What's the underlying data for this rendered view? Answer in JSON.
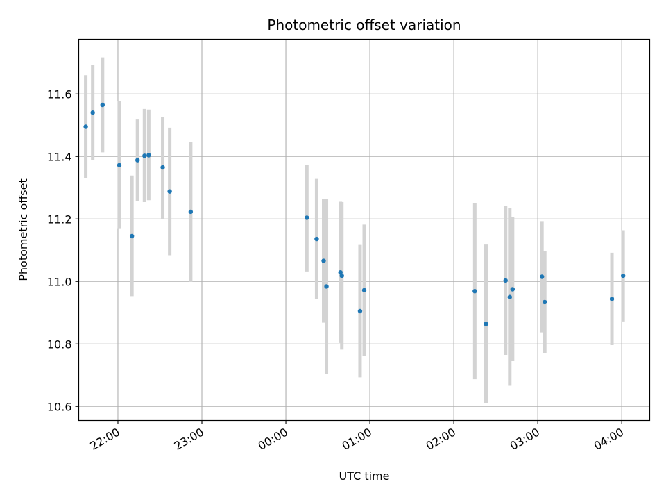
{
  "chart_data": {
    "type": "scatter",
    "title": "Photometric offset variation",
    "xlabel": "UTC time",
    "ylabel": "Photometric offset",
    "x_unit": "UTC time (HH:MM), night spanning midnight",
    "xlim": [
      "21:32",
      "04:20"
    ],
    "ylim": [
      10.555,
      11.775
    ],
    "grid": true,
    "legend": "none",
    "x_ticks": [
      "22:00",
      "23:00",
      "00:00",
      "01:00",
      "02:00",
      "03:00",
      "04:00"
    ],
    "y_ticks": [
      10.6,
      10.8,
      11.0,
      11.2,
      11.4,
      11.6
    ],
    "y_tick_labels": [
      "10.6",
      "10.8",
      "11.0",
      "11.2",
      "11.4",
      "11.6"
    ],
    "colors": {
      "points": "#1f77b4",
      "error_bars": "#d3d3d3",
      "grid": "#b0b0b0"
    },
    "series": [
      {
        "points": [
          {
            "x": "21:37",
            "y": 11.495,
            "ylow": 11.33,
            "yhigh": 11.66
          },
          {
            "x": "21:42",
            "y": 11.54,
            "ylow": 11.388,
            "yhigh": 11.692
          },
          {
            "x": "21:49",
            "y": 11.565,
            "ylow": 11.413,
            "yhigh": 11.717
          },
          {
            "x": "22:01",
            "y": 11.372,
            "ylow": 11.168,
            "yhigh": 11.576
          },
          {
            "x": "22:10",
            "y": 11.145,
            "ylow": 10.953,
            "yhigh": 11.339
          },
          {
            "x": "22:14",
            "y": 11.388,
            "ylow": 11.256,
            "yhigh": 11.518
          },
          {
            "x": "22:19",
            "y": 11.402,
            "ylow": 11.254,
            "yhigh": 11.552
          },
          {
            "x": "22:22",
            "y": 11.404,
            "ylow": 11.26,
            "yhigh": 11.55
          },
          {
            "x": "22:32",
            "y": 11.365,
            "ylow": 11.201,
            "yhigh": 11.527
          },
          {
            "x": "22:37",
            "y": 11.288,
            "ylow": 11.084,
            "yhigh": 11.492
          },
          {
            "x": "22:52",
            "y": 11.223,
            "ylow": 10.999,
            "yhigh": 11.447
          },
          {
            "x": "00:15",
            "y": 11.204,
            "ylow": 11.032,
            "yhigh": 11.374
          },
          {
            "x": "00:22",
            "y": 11.136,
            "ylow": 10.944,
            "yhigh": 11.328
          },
          {
            "x": "00:27",
            "y": 11.066,
            "ylow": 10.868,
            "yhigh": 11.264
          },
          {
            "x": "00:29",
            "y": 10.984,
            "ylow": 10.704,
            "yhigh": 11.264
          },
          {
            "x": "00:39",
            "y": 11.029,
            "ylow": 10.803,
            "yhigh": 11.255
          },
          {
            "x": "00:40",
            "y": 11.018,
            "ylow": 10.782,
            "yhigh": 11.254
          },
          {
            "x": "00:53",
            "y": 10.905,
            "ylow": 10.693,
            "yhigh": 11.117
          },
          {
            "x": "00:56",
            "y": 10.972,
            "ylow": 10.762,
            "yhigh": 11.182
          },
          {
            "x": "02:15",
            "y": 10.969,
            "ylow": 10.687,
            "yhigh": 11.251
          },
          {
            "x": "02:23",
            "y": 10.864,
            "ylow": 10.61,
            "yhigh": 11.118
          },
          {
            "x": "02:37",
            "y": 11.003,
            "ylow": 10.765,
            "yhigh": 11.241
          },
          {
            "x": "02:40",
            "y": 10.95,
            "ylow": 10.666,
            "yhigh": 11.234
          },
          {
            "x": "02:42",
            "y": 10.975,
            "ylow": 10.745,
            "yhigh": 11.205
          },
          {
            "x": "03:03",
            "y": 11.015,
            "ylow": 10.837,
            "yhigh": 11.193
          },
          {
            "x": "03:05",
            "y": 10.934,
            "ylow": 10.77,
            "yhigh": 11.098
          },
          {
            "x": "03:53",
            "y": 10.944,
            "ylow": 10.796,
            "yhigh": 11.092
          },
          {
            "x": "04:01",
            "y": 11.018,
            "ylow": 10.872,
            "yhigh": 11.164
          }
        ]
      }
    ]
  }
}
